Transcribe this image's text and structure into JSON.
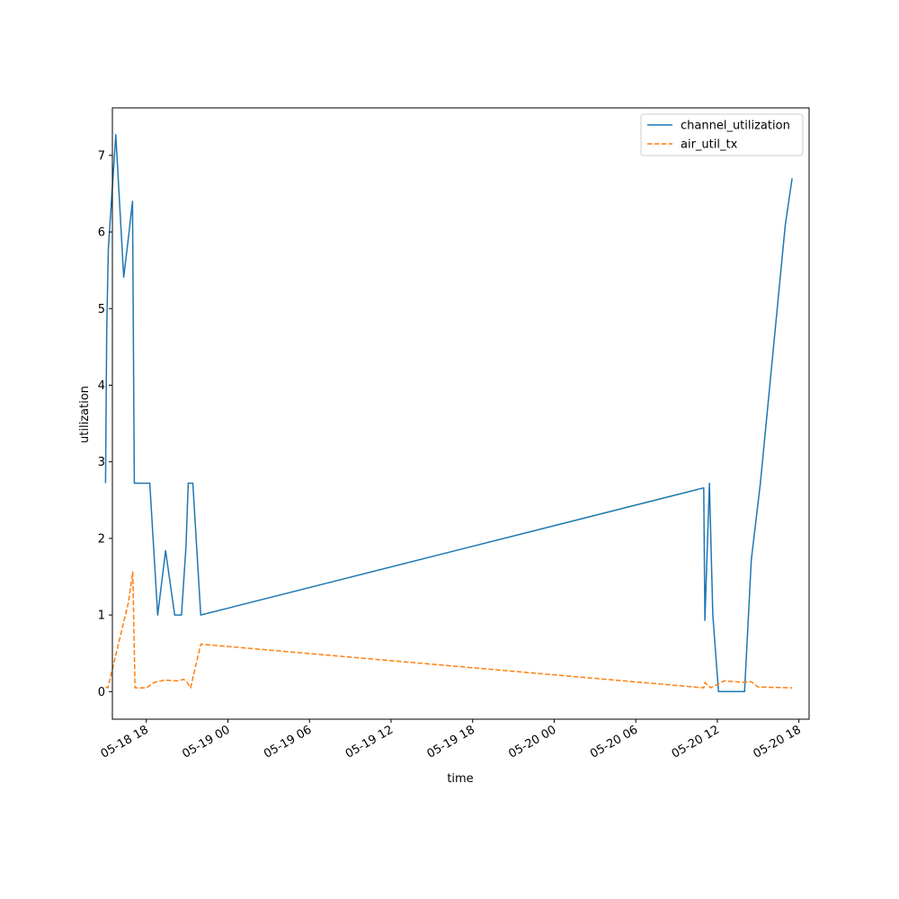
{
  "chart_data": {
    "type": "line",
    "title": "",
    "xlabel": "time",
    "ylabel": "utilization",
    "x_axis_type": "datetime",
    "xlim": [
      "2024-05-18T15:30",
      "2024-05-20T18:45"
    ],
    "ylim": [
      -0.36,
      7.62
    ],
    "x_ticks": [
      {
        "t": "2024-05-18T18:00",
        "label": "05-18 18"
      },
      {
        "t": "2024-05-19T00:00",
        "label": "05-19 00"
      },
      {
        "t": "2024-05-19T06:00",
        "label": "05-19 06"
      },
      {
        "t": "2024-05-19T12:00",
        "label": "05-19 12"
      },
      {
        "t": "2024-05-19T18:00",
        "label": "05-19 18"
      },
      {
        "t": "2024-05-20T00:00",
        "label": "05-20 00"
      },
      {
        "t": "2024-05-20T06:00",
        "label": "05-20 06"
      },
      {
        "t": "2024-05-20T12:00",
        "label": "05-20 12"
      },
      {
        "t": "2024-05-20T18:00",
        "label": "05-20 18"
      }
    ],
    "y_ticks": [
      0,
      1,
      2,
      3,
      4,
      5,
      6,
      7
    ],
    "grid": false,
    "legend_position": "top-right",
    "series": [
      {
        "name": "channel_utilization",
        "color": "#1f77b4",
        "style": "solid",
        "points": [
          [
            "2024-05-18T15:00",
            2.72
          ],
          [
            "2024-05-18T15:05",
            4.7
          ],
          [
            "2024-05-18T15:12",
            5.78
          ],
          [
            "2024-05-18T15:45",
            7.27
          ],
          [
            "2024-05-18T16:20",
            5.41
          ],
          [
            "2024-05-18T16:40",
            5.9
          ],
          [
            "2024-05-18T16:59",
            6.4
          ],
          [
            "2024-05-18T17:07",
            2.72
          ],
          [
            "2024-05-18T18:15",
            2.72
          ],
          [
            "2024-05-18T18:50",
            1.0
          ],
          [
            "2024-05-18T19:25",
            1.84
          ],
          [
            "2024-05-18T20:05",
            1.0
          ],
          [
            "2024-05-18T20:35",
            1.0
          ],
          [
            "2024-05-18T20:55",
            1.9
          ],
          [
            "2024-05-18T21:05",
            2.72
          ],
          [
            "2024-05-18T21:25",
            2.72
          ],
          [
            "2024-05-18T22:00",
            1.0
          ],
          [
            "2024-05-20T11:00",
            2.66
          ],
          [
            "2024-05-20T11:05",
            0.93
          ],
          [
            "2024-05-20T11:25",
            2.72
          ],
          [
            "2024-05-20T11:40",
            1.0
          ],
          [
            "2024-05-20T12:05",
            0.0
          ],
          [
            "2024-05-20T14:00",
            0.0
          ],
          [
            "2024-05-20T14:30",
            1.72
          ],
          [
            "2024-05-20T15:10",
            2.72
          ],
          [
            "2024-05-20T17:00",
            6.09
          ],
          [
            "2024-05-20T17:30",
            6.7
          ]
        ]
      },
      {
        "name": "air_util_tx",
        "color": "#ff7f0e",
        "style": "dashed",
        "points": [
          [
            "2024-05-18T15:00",
            0.06
          ],
          [
            "2024-05-18T15:10",
            0.05
          ],
          [
            "2024-05-18T16:40",
            1.15
          ],
          [
            "2024-05-18T17:00",
            1.56
          ],
          [
            "2024-05-18T17:10",
            0.05
          ],
          [
            "2024-05-18T18:00",
            0.05
          ],
          [
            "2024-05-18T18:35",
            0.12
          ],
          [
            "2024-05-18T19:20",
            0.15
          ],
          [
            "2024-05-18T20:15",
            0.14
          ],
          [
            "2024-05-18T20:45",
            0.16
          ],
          [
            "2024-05-18T21:00",
            0.12
          ],
          [
            "2024-05-18T21:15",
            0.05
          ],
          [
            "2024-05-18T22:00",
            0.62
          ],
          [
            "2024-05-20T11:00",
            0.05
          ],
          [
            "2024-05-20T11:05",
            0.12
          ],
          [
            "2024-05-20T11:30",
            0.05
          ],
          [
            "2024-05-20T12:30",
            0.14
          ],
          [
            "2024-05-20T14:00",
            0.12
          ],
          [
            "2024-05-20T14:30",
            0.13
          ],
          [
            "2024-05-20T15:00",
            0.06
          ],
          [
            "2024-05-20T17:30",
            0.05
          ]
        ]
      }
    ]
  }
}
